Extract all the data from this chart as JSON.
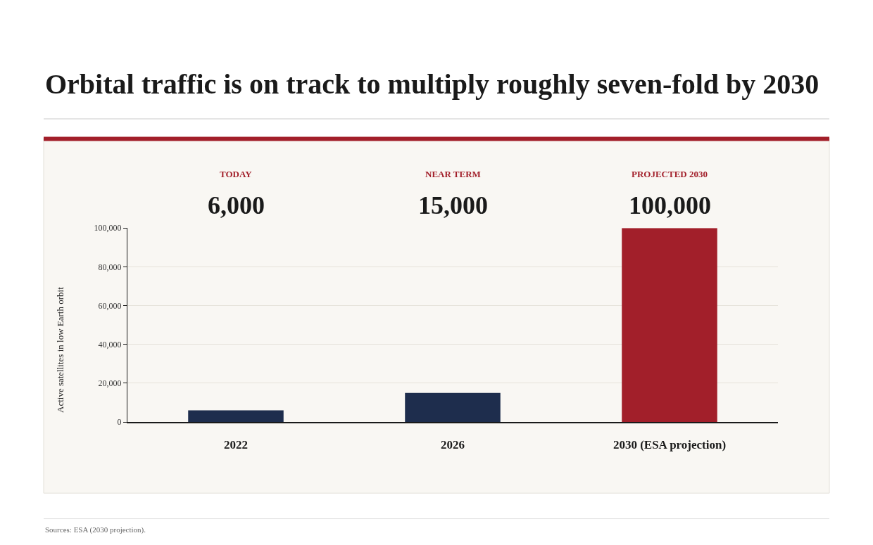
{
  "chart_data": {
    "type": "bar",
    "title": "Orbital traffic is on track to multiply roughly seven-fold by 2030",
    "ylabel": "Active satellites in low Earth orbit",
    "categories": [
      "2022",
      "2026",
      "2030 (ESA projection)"
    ],
    "values": [
      6000,
      15000,
      100000
    ],
    "colors": [
      "#1e2d4d",
      "#1e2d4d",
      "#a21f2a"
    ],
    "ylim": [
      0,
      100000
    ],
    "yticks": [
      0,
      {
        "value": 20000,
        "label": "20,000"
      },
      {
        "value": 40000,
        "label": "40,000"
      },
      {
        "value": 60000,
        "label": "60,000"
      },
      {
        "value": 80000,
        "label": "80,000"
      },
      {
        "value": 100000,
        "label": "100,000"
      }
    ],
    "grid": "y",
    "annotations": [
      "TODAY",
      "6,000",
      "NEAR TERM",
      "15,000",
      "PROJECTED 2030",
      "100,000",
      "Sources: ESA (2030 projection)."
    ]
  }
}
